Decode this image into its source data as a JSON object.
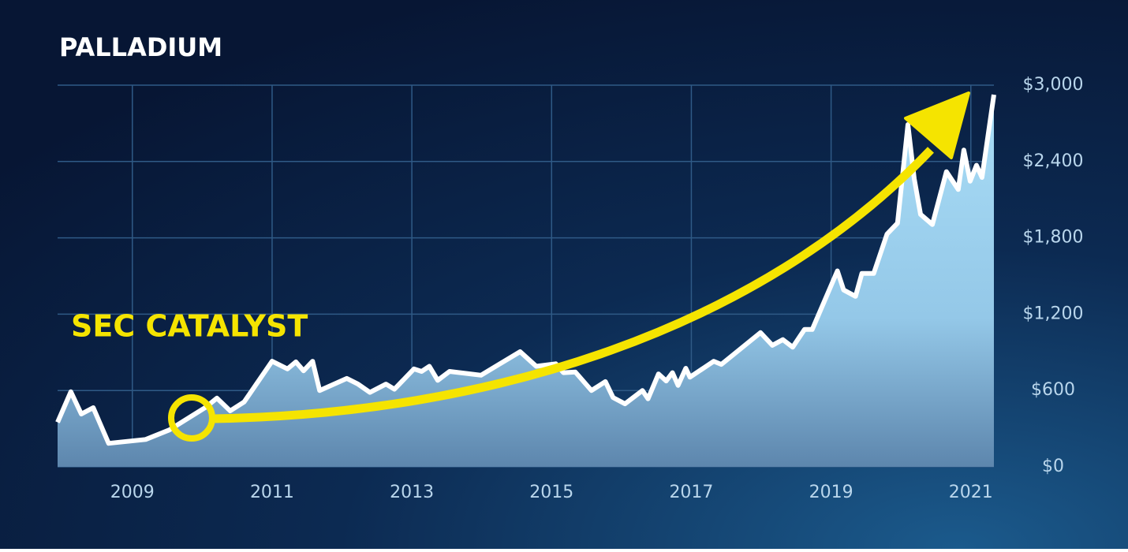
{
  "chart_data": {
    "type": "area",
    "title": "PALLADIUM",
    "annotation": "SEC CATALYST",
    "x": [
      2007.93,
      2008.12,
      2008.27,
      2008.44,
      2008.66,
      2009.19,
      2009.53,
      2010.04,
      2010.21,
      2010.4,
      2010.6,
      2011.0,
      2011.22,
      2011.34,
      2011.45,
      2011.58,
      2011.68,
      2012.07,
      2012.23,
      2012.4,
      2012.63,
      2012.75,
      2013.03,
      2013.14,
      2013.25,
      2013.37,
      2013.54,
      2013.99,
      2014.55,
      2014.78,
      2015.06,
      2015.17,
      2015.34,
      2015.57,
      2015.77,
      2015.88,
      2016.05,
      2016.3,
      2016.38,
      2016.53,
      2016.64,
      2016.73,
      2016.81,
      2016.92,
      2016.98,
      2017.32,
      2017.43,
      2017.99,
      2018.16,
      2018.31,
      2018.45,
      2018.62,
      2018.73,
      2019.09,
      2019.18,
      2019.35,
      2019.44,
      2019.61,
      2019.8,
      2019.95,
      2020.1,
      2020.19,
      2020.28,
      2020.45,
      2020.65,
      2020.82,
      2020.9,
      2020.99,
      2021.08,
      2021.16,
      2021.33
    ],
    "values": [
      350,
      590,
      415,
      465,
      185,
      215,
      290,
      465,
      540,
      440,
      510,
      830,
      770,
      825,
      755,
      830,
      600,
      695,
      650,
      585,
      650,
      610,
      770,
      750,
      790,
      680,
      750,
      720,
      905,
      790,
      810,
      740,
      745,
      600,
      670,
      545,
      495,
      600,
      535,
      730,
      675,
      740,
      640,
      775,
      705,
      830,
      805,
      1055,
      955,
      1000,
      940,
      1080,
      1080,
      1540,
      1390,
      1340,
      1520,
      1520,
      1830,
      1915,
      2690,
      2265,
      1985,
      1905,
      2320,
      2180,
      2490,
      2245,
      2370,
      2275,
      2925
    ],
    "color": "#ffffff",
    "xlim": [
      2007.93,
      2021.33
    ],
    "xticks": [
      2009,
      2011,
      2013,
      2015,
      2017,
      2019,
      2021
    ],
    "ylim": [
      0,
      3000
    ],
    "yticks": [
      {
        "value": 0,
        "label": "$0"
      },
      {
        "value": 600,
        "label": "$600"
      },
      {
        "value": 1200,
        "label": "$1,200"
      },
      {
        "value": 1800,
        "label": "$1,800"
      },
      {
        "value": 2400,
        "label": "$2,400"
      },
      {
        "value": 3000,
        "label": "$3,000"
      }
    ],
    "grid": true
  }
}
